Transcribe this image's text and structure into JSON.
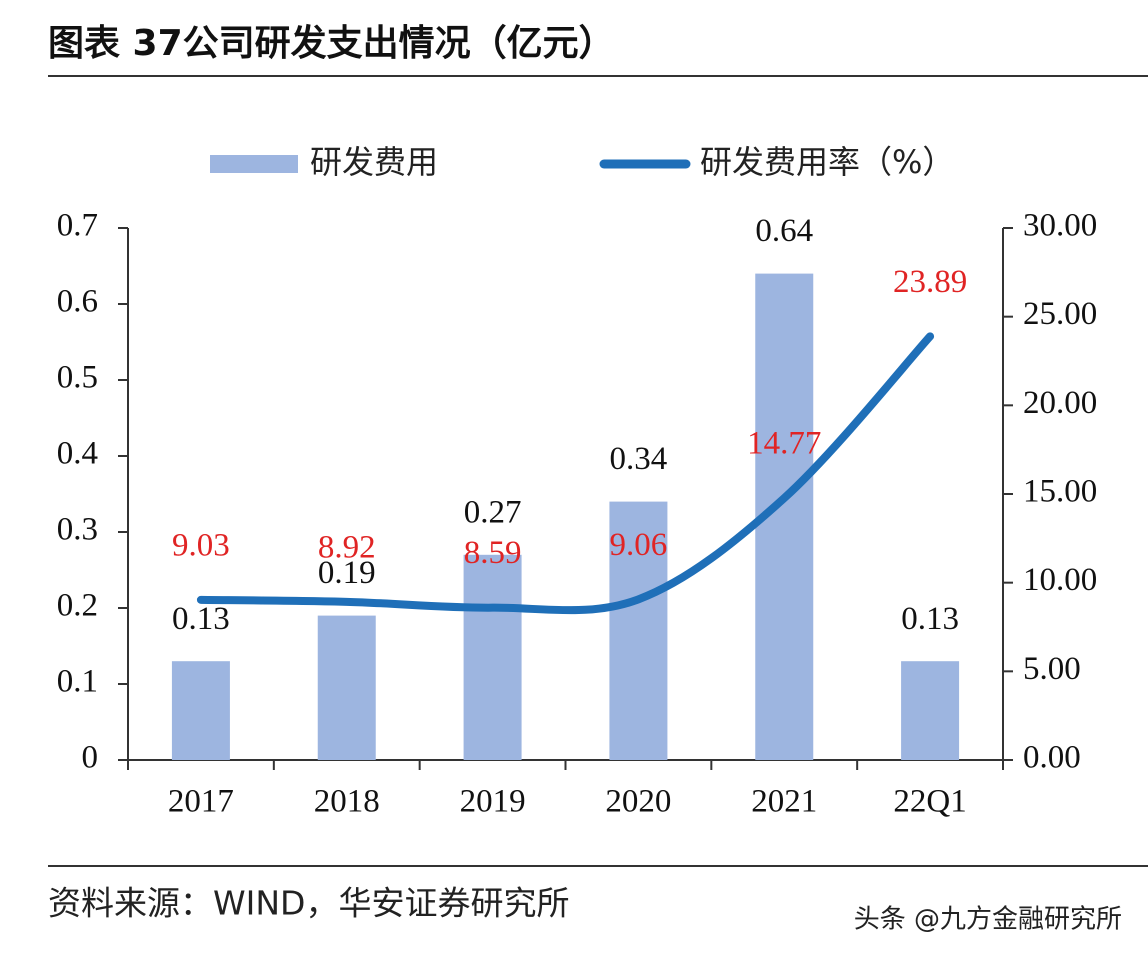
{
  "chart_data": {
    "type": "combo",
    "title": "图表 37公司研发支出情况（亿元）",
    "source": "资料来源：WIND，华安证券研究所",
    "watermark": "头条 @九方金融研究所",
    "categories": [
      "2017",
      "2018",
      "2019",
      "2020",
      "2021",
      "22Q1"
    ],
    "series": [
      {
        "name": "研发费用",
        "type": "bar",
        "color": "#9db5e0",
        "label_color": "#111111",
        "values": [
          0.13,
          0.19,
          0.27,
          0.34,
          0.64,
          0.13
        ]
      },
      {
        "name": "研发费用率（%）",
        "type": "line",
        "axis": "y2",
        "color": "#1f6fb8",
        "label_color": "#e02424",
        "values": [
          9.03,
          8.92,
          8.59,
          9.06,
          14.77,
          23.89
        ]
      }
    ],
    "ylim": [
      0,
      0.7
    ],
    "yticks": [
      0,
      0.1,
      0.2,
      0.3,
      0.4,
      0.5,
      0.6,
      0.7
    ],
    "y2lim": [
      0,
      30
    ],
    "y2ticks": [
      {
        "value": 0,
        "label": "0.00"
      },
      {
        "value": 5,
        "label": "5.00"
      },
      {
        "value": 10,
        "label": "10.00"
      },
      {
        "value": 15,
        "label": "15.00"
      },
      {
        "value": 20,
        "label": "20.00"
      },
      {
        "value": 25,
        "label": "25.00"
      },
      {
        "value": 30,
        "label": "30.00"
      }
    ],
    "grid": false,
    "legend": "top"
  }
}
